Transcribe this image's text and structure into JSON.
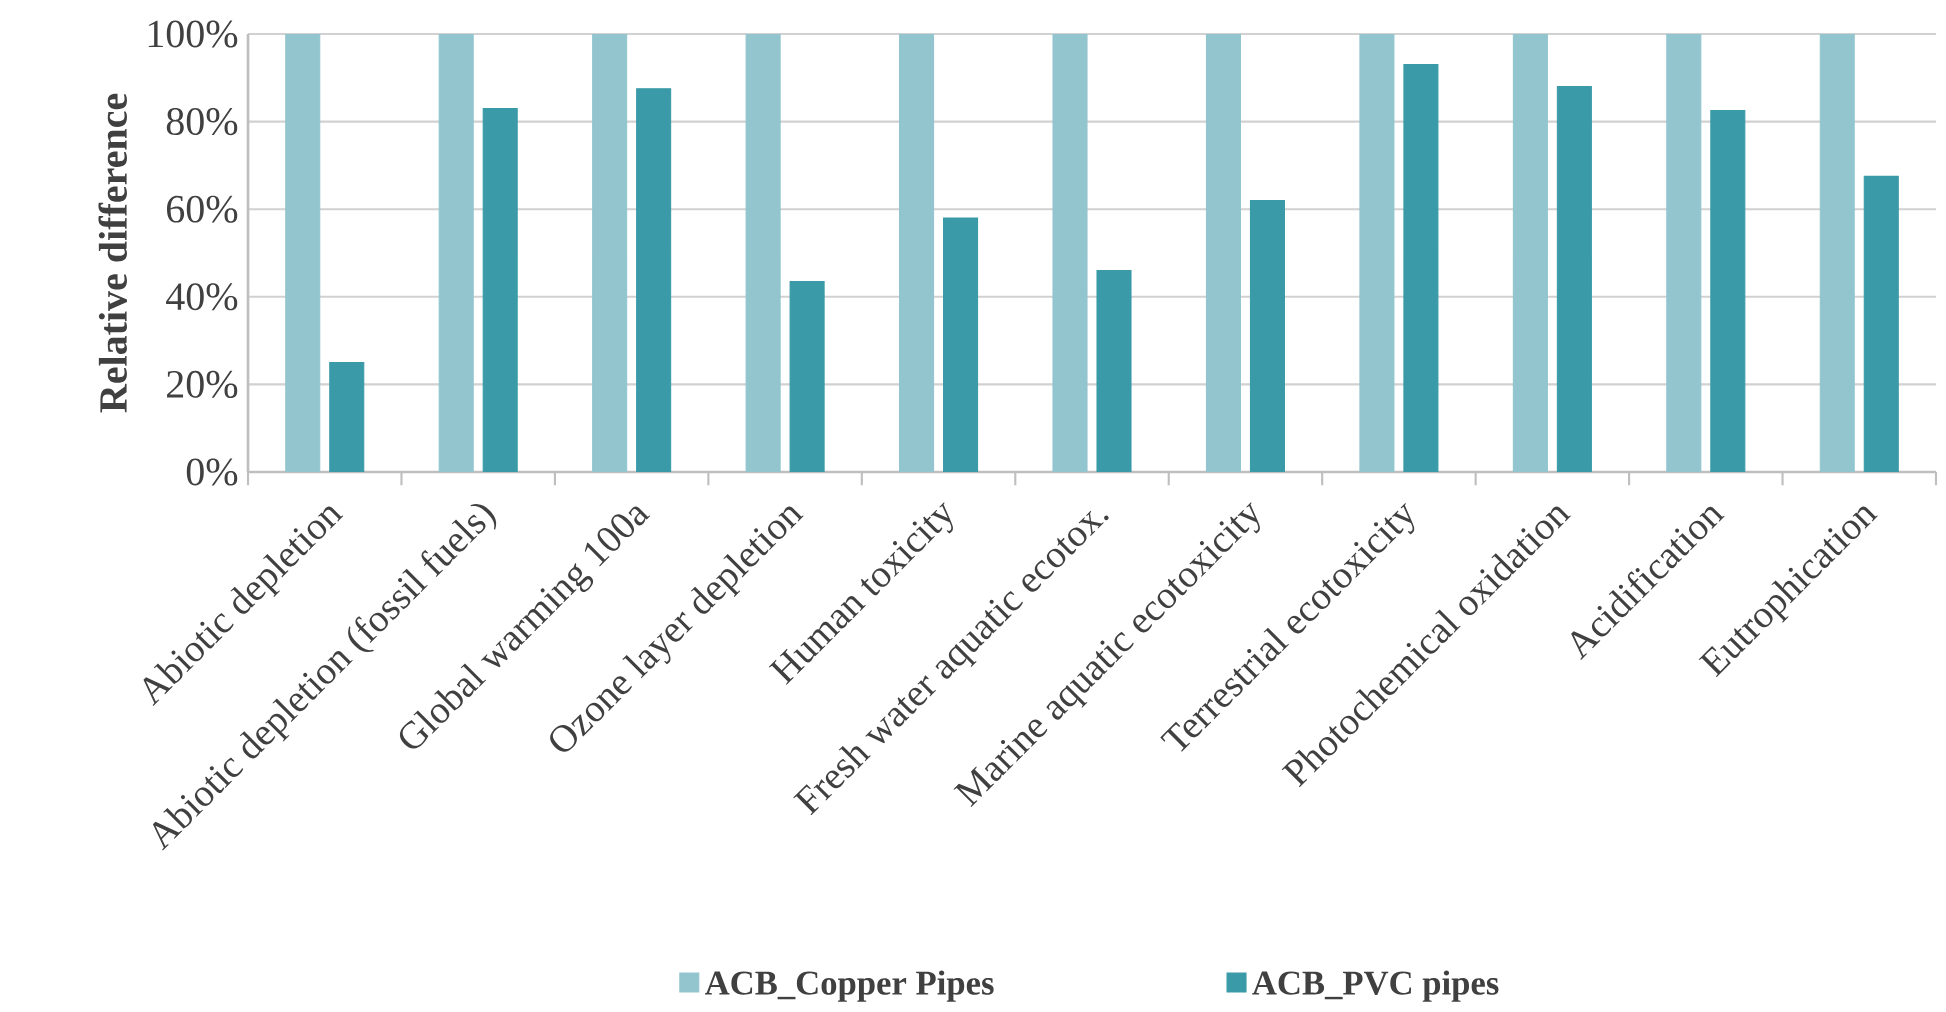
{
  "chart_data": {
    "type": "bar",
    "ylabel": "Relative difference",
    "categories": [
      "Abiotic depletion",
      "Abiotic depletion (fossil fuels)",
      "Global warming 100a",
      "Ozone layer depletion",
      "Human toxicity",
      "Fresh water aquatic ecotox.",
      "Marine aquatic ecotoxicity",
      "Terrestrial ecotoxicity",
      "Photochemical oxidation",
      "Acidification",
      "Eutrophication"
    ],
    "series": [
      {
        "name": "ACB_Copper Pipes",
        "color": "#92c5ce",
        "values": [
          100,
          100,
          100,
          100,
          100,
          100,
          100,
          100,
          100,
          100,
          100
        ]
      },
      {
        "name": "ACB_PVC pipes",
        "color": "#3a9aa8",
        "values": [
          25,
          83,
          87.5,
          43.5,
          58,
          46,
          62,
          93,
          88,
          82.5,
          67.5
        ]
      }
    ],
    "ylim": [
      0,
      100
    ],
    "yticks": [
      {
        "value": 0,
        "label": "0%"
      },
      {
        "value": 20,
        "label": "20%"
      },
      {
        "value": 40,
        "label": "40%"
      },
      {
        "value": 60,
        "label": "60%"
      },
      {
        "value": 80,
        "label": "80%"
      },
      {
        "value": 100,
        "label": "100%"
      }
    ],
    "grid": "y",
    "legend": "bottom"
  }
}
